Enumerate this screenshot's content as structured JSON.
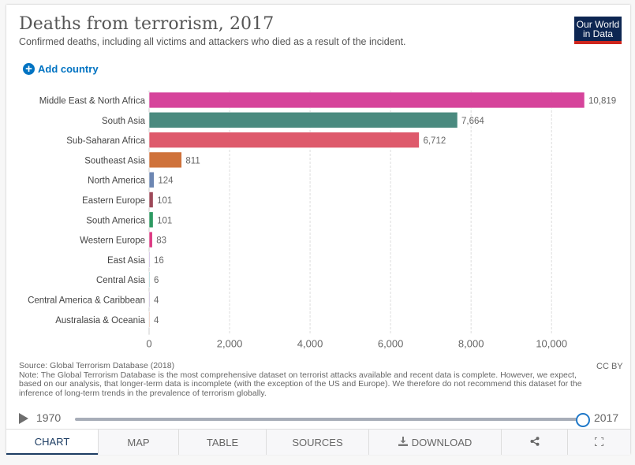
{
  "header": {
    "title": "Deaths from terrorism, 2017",
    "subtitle": "Confirmed deaths, including all victims and attackers who died as a result of the incident.",
    "logo_line1": "Our World",
    "logo_line2": "in Data",
    "add_country_label": "Add country",
    "add_country_icon": "plus-circle-icon"
  },
  "chart_data": {
    "type": "bar",
    "orientation": "horizontal",
    "title": "Deaths from terrorism, 2017",
    "xlabel": "",
    "ylabel": "",
    "xlim": [
      0,
      10819
    ],
    "xticks": [
      0,
      2000,
      4000,
      6000,
      8000,
      10000
    ],
    "xtick_labels": [
      "0",
      "2,000",
      "4,000",
      "6,000",
      "8,000",
      "10,000"
    ],
    "grid": "vertical dashed",
    "categories": [
      "Middle East & North Africa",
      "South Asia",
      "Sub-Saharan Africa",
      "Southeast Asia",
      "North America",
      "Eastern Europe",
      "South America",
      "Western Europe",
      "East Asia",
      "Central Asia",
      "Central America & Caribbean",
      "Australasia & Oceania"
    ],
    "values": [
      10819,
      7664,
      6712,
      811,
      124,
      101,
      101,
      83,
      16,
      6,
      4,
      4
    ],
    "value_labels": [
      "10,819",
      "7,664",
      "6,712",
      "811",
      "124",
      "101",
      "101",
      "83",
      "16",
      "6",
      "4",
      "4"
    ],
    "colors": [
      "#d6449b",
      "#4a8a7f",
      "#de5a6c",
      "#cf723b",
      "#6d87b3",
      "#9e4a5a",
      "#2e9a62",
      "#dd3a83",
      "#a37fcb",
      "#6fb3b8",
      "#a48fc0",
      "#d9a08d"
    ]
  },
  "footer": {
    "source": "Source: Global Terrorism Database (2018)",
    "note": "Note: The Global Terrorism Database is the most comprehensive dataset on terrorist attacks available and recent data is complete. However, we expect, based on our analysis, that longer-term data is incomplete (with the exception of the US and Europe). We therefore do not recommend this dataset for the inference of long-term trends in the prevalence of terrorism globally.",
    "license": "CC BY"
  },
  "timeline": {
    "start_year": "1970",
    "end_year": "2017",
    "selected_fraction": 1.0
  },
  "tabs": [
    {
      "label": "CHART",
      "active": true
    },
    {
      "label": "MAP"
    },
    {
      "label": "TABLE"
    },
    {
      "label": "SOURCES"
    },
    {
      "label": "DOWNLOAD",
      "icon": "download-icon"
    },
    {
      "label": "",
      "icon": "share-icon"
    },
    {
      "label": "",
      "icon": "fullscreen-icon"
    }
  ]
}
